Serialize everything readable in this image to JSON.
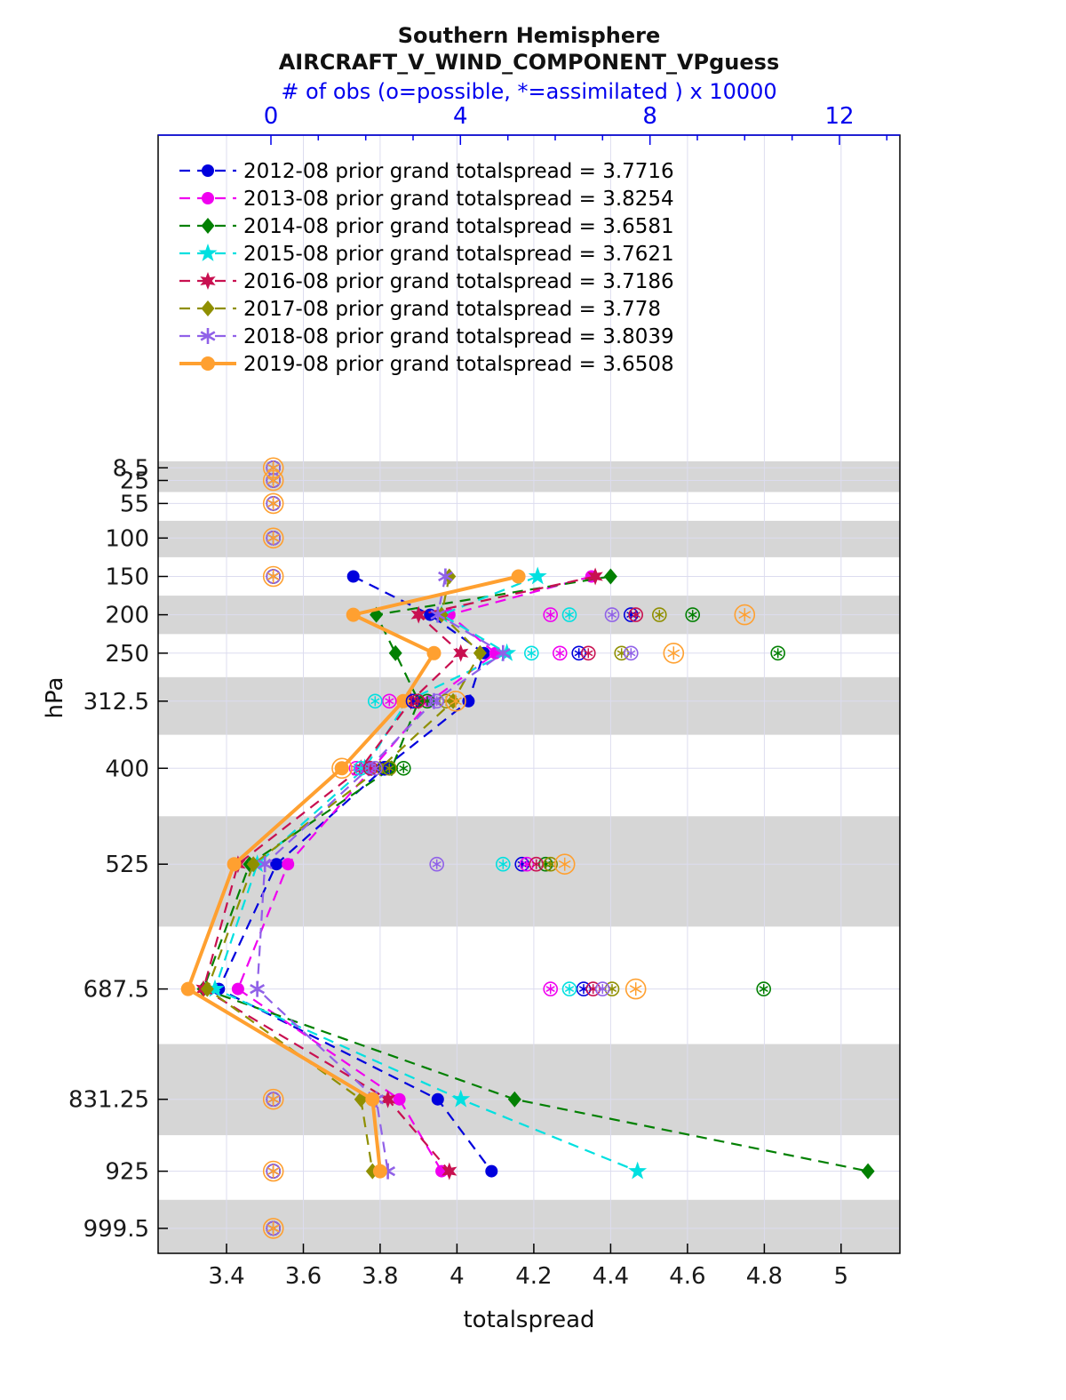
{
  "title": {
    "line1": "Southern Hemisphere",
    "line2": "AIRCRAFT_V_WIND_COMPONENT_VPguess"
  },
  "top_axis": {
    "label": "# of obs (o=possible, *=assimilated ) x 10000",
    "color": "#0000EE",
    "tick_labels": [
      "0",
      "4",
      "8",
      "12"
    ],
    "tick_values": [
      0,
      4,
      8,
      12
    ],
    "minor_tick_values": [
      1,
      2,
      3,
      5,
      6,
      7,
      9,
      10,
      11,
      13
    ],
    "range": [
      -2.381,
      13.275
    ]
  },
  "bottom_axis": {
    "label": "totalspread",
    "tick_labels": [
      "3.4",
      "3.6",
      "3.8",
      "4",
      "4.2",
      "4.4",
      "4.6",
      "4.8",
      "5"
    ],
    "tick_values": [
      3.4,
      3.6,
      3.8,
      4.0,
      4.2,
      4.4,
      4.6,
      4.8,
      5.0
    ],
    "range": [
      3.222,
      5.153
    ]
  },
  "left_axis": {
    "label": "hPa",
    "tick_labels": [
      "8.5",
      "25",
      "55",
      "100",
      "150",
      "200",
      "250",
      "312.5",
      "400",
      "525",
      "687.5",
      "831.25",
      "925",
      "999.5"
    ],
    "levels": [
      8.5,
      25,
      55,
      100,
      150,
      200,
      250,
      312.5,
      400,
      525,
      687.5,
      831.25,
      925,
      999.5
    ],
    "range": [
      -425,
      1032
    ]
  },
  "shaded_levels": [
    8.5,
    25,
    100,
    200,
    312.5,
    525,
    831.25,
    999.5
  ],
  "band_color": "#d6d6d6",
  "grid_color": "#dcdcef",
  "chart_data": {
    "type": "line",
    "title": "Southern Hemisphere AIRCRAFT_V_WIND_COMPONENT_VPguess",
    "xlabel": "totalspread",
    "ylabel": "hPa",
    "x2label": "# of obs (o=possible, *=assimilated ) x 10000",
    "levels_line": [
      150,
      200,
      250,
      312.5,
      400,
      525,
      687.5,
      831.25,
      925
    ],
    "levels_obs": [
      8.5,
      25,
      55,
      100,
      150,
      200,
      250,
      312.5,
      400,
      525,
      687.5,
      831.25,
      925,
      999.5
    ],
    "series": [
      {
        "name": "2012-08",
        "label": "2012-08 prior grand totalspread = 3.7716",
        "grand_total": 3.7716,
        "color": "#0000DD",
        "marker": "circle",
        "line": "dashed",
        "totalspread": [
          3.73,
          3.93,
          4.07,
          4.03,
          3.81,
          3.53,
          3.38,
          3.95,
          4.09
        ],
        "obs": [
          0.05,
          0.05,
          0.05,
          0.05,
          0.05,
          7.6,
          6.5,
          3.0,
          2.4,
          5.3,
          6.6,
          0.05,
          0.05,
          0.05
        ]
      },
      {
        "name": "2013-08",
        "label": "2013-08 prior grand totalspread = 3.8254",
        "grand_total": 3.8254,
        "color": "#F000F0",
        "marker": "circle",
        "line": "dashed",
        "totalspread": [
          4.35,
          3.98,
          4.1,
          3.93,
          3.78,
          3.56,
          3.43,
          3.85,
          3.96
        ],
        "obs": [
          0.05,
          0.05,
          0.05,
          0.05,
          0.05,
          5.9,
          6.1,
          2.5,
          1.8,
          5.4,
          5.9,
          0.05,
          0.05,
          0.05
        ]
      },
      {
        "name": "2014-08",
        "label": "2014-08 prior grand totalspread = 3.6581",
        "grand_total": 3.6581,
        "color": "#028002",
        "marker": "diamond",
        "line": "dashed",
        "totalspread": [
          4.4,
          3.79,
          3.84,
          3.9,
          3.83,
          3.46,
          3.34,
          4.15,
          5.07
        ],
        "obs": [
          0.05,
          0.05,
          0.05,
          0.05,
          0.05,
          8.9,
          10.7,
          3.3,
          2.8,
          5.8,
          10.4,
          0.05,
          0.05,
          0.05
        ]
      },
      {
        "name": "2015-08",
        "label": "2015-08 prior grand totalspread = 3.7621",
        "grand_total": 3.7621,
        "color": "#00E0E0",
        "marker": "pentagram",
        "line": "dashed",
        "totalspread": [
          4.21,
          3.96,
          4.13,
          3.87,
          3.76,
          3.48,
          3.37,
          4.01,
          4.47
        ],
        "obs": [
          0.05,
          0.05,
          0.05,
          0.05,
          0.05,
          6.3,
          5.5,
          2.2,
          1.9,
          4.9,
          6.3,
          0.05,
          0.05,
          0.05
        ]
      },
      {
        "name": "2016-08",
        "label": "2016-08 prior grand totalspread = 3.7186",
        "grand_total": 3.7186,
        "color": "#C81050",
        "marker": "hexagram",
        "line": "dashed",
        "totalspread": [
          4.36,
          3.9,
          4.01,
          3.88,
          3.75,
          3.43,
          3.34,
          3.82,
          3.98
        ],
        "obs": [
          0.05,
          0.05,
          0.05,
          0.05,
          0.05,
          7.7,
          6.7,
          3.1,
          2.1,
          5.6,
          6.8,
          0.05,
          0.05,
          0.05
        ]
      },
      {
        "name": "2017-08",
        "label": "2017-08 prior grand totalspread = 3.778",
        "grand_total": 3.778,
        "color": "#8F8F00",
        "marker": "diamond",
        "line": "dashed",
        "totalspread": [
          3.98,
          3.96,
          4.06,
          3.99,
          3.8,
          3.47,
          3.35,
          3.75,
          3.78
        ],
        "obs": [
          0.05,
          0.05,
          0.05,
          0.05,
          0.05,
          8.2,
          7.4,
          3.7,
          2.5,
          5.9,
          7.2,
          0.05,
          0.05,
          0.05
        ]
      },
      {
        "name": "2018-08",
        "label": "2018-08 prior grand totalspread = 3.8039",
        "grand_total": 3.8039,
        "color": "#9061E8",
        "marker": "asterisk",
        "line": "dashed",
        "totalspread": [
          3.97,
          3.95,
          4.12,
          3.94,
          3.77,
          3.5,
          3.48,
          3.79,
          3.82
        ],
        "obs": [
          0.05,
          0.05,
          0.05,
          0.05,
          0.05,
          7.2,
          7.6,
          3.5,
          2.2,
          3.5,
          7.0,
          0.05,
          0.05,
          0.05
        ]
      },
      {
        "name": "2019-08",
        "label": "2019-08 prior grand totalspread = 3.6508",
        "grand_total": 3.6508,
        "color": "#FFA030",
        "marker": "circle",
        "line": "solid",
        "totalspread": [
          4.16,
          3.73,
          3.94,
          3.86,
          3.7,
          3.42,
          3.3,
          3.78,
          3.8
        ],
        "obs": [
          0.05,
          0.05,
          0.05,
          0.05,
          0.05,
          10.0,
          8.5,
          3.9,
          1.5,
          6.2,
          7.7,
          0.05,
          0.05,
          0.05
        ]
      }
    ]
  }
}
